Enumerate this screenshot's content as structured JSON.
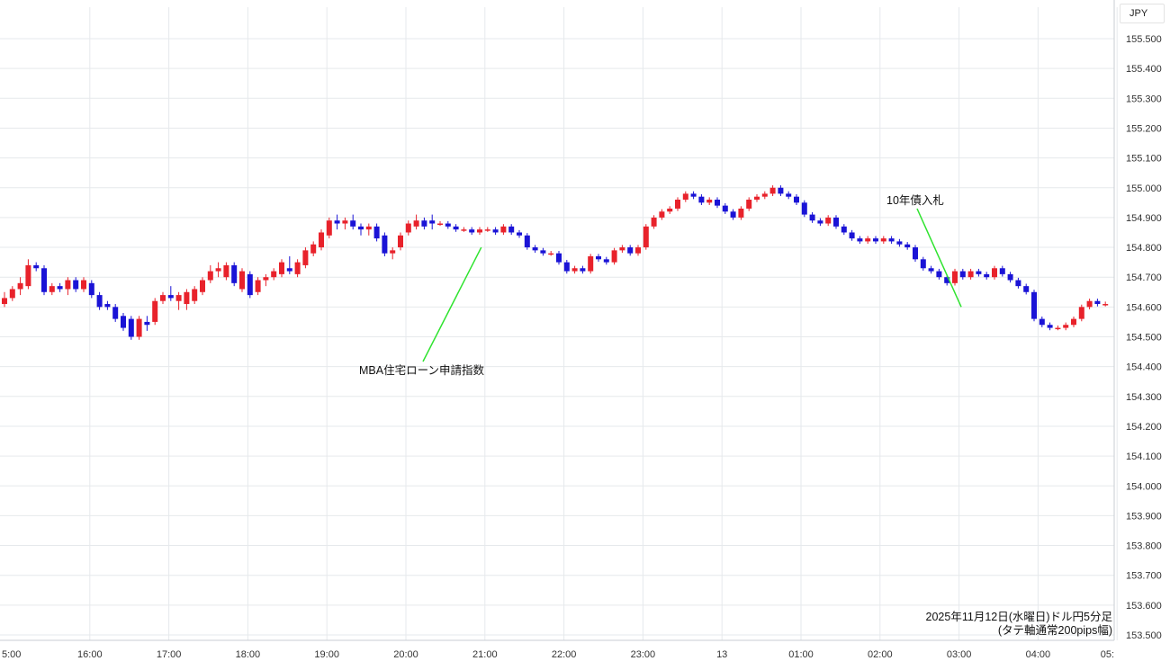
{
  "chart_data": {
    "type": "candlestick",
    "unit": "JPY",
    "caption_line1": "2025年11月12日(水曜日)ドル円5分足",
    "caption_line2": "(タテ軸通常200pips幅)",
    "ylim": [
      153.5,
      155.5
    ],
    "x_ticks": [
      "5:00",
      "16:00",
      "17:00",
      "18:00",
      "19:00",
      "20:00",
      "21:00",
      "22:00",
      "23:00",
      "13",
      "01:00",
      "02:00",
      "03:00",
      "04:00",
      "05:"
    ],
    "y_ticks": [
      "155.500",
      "155.400",
      "155.300",
      "155.200",
      "155.100",
      "155.000",
      "154.900",
      "154.800",
      "154.700",
      "154.600",
      "154.500",
      "154.400",
      "154.300",
      "154.200",
      "154.100",
      "154.000",
      "153.900",
      "153.800",
      "153.700",
      "153.600",
      "153.500"
    ],
    "annotations": [
      {
        "text": "MBA住宅ローン申請指数",
        "time_index": 60.2,
        "price": 154.8
      },
      {
        "text": "10年債入札",
        "time_index": 120.8,
        "price": 154.6
      }
    ],
    "colors": {
      "up": "#e8222b",
      "down": "#1a13d6",
      "annotation": "#2fe32f",
      "grid": "#e6e9ec"
    },
    "candles": [
      {
        "o": 154.61,
        "h": 154.65,
        "l": 154.6,
        "c": 154.63
      },
      {
        "o": 154.63,
        "h": 154.67,
        "l": 154.62,
        "c": 154.66
      },
      {
        "o": 154.66,
        "h": 154.7,
        "l": 154.64,
        "c": 154.68
      },
      {
        "o": 154.67,
        "h": 154.76,
        "l": 154.66,
        "c": 154.74
      },
      {
        "o": 154.74,
        "h": 154.75,
        "l": 154.72,
        "c": 154.73
      },
      {
        "o": 154.73,
        "h": 154.74,
        "l": 154.64,
        "c": 154.65
      },
      {
        "o": 154.65,
        "h": 154.68,
        "l": 154.64,
        "c": 154.67
      },
      {
        "o": 154.67,
        "h": 154.68,
        "l": 154.65,
        "c": 154.66
      },
      {
        "o": 154.66,
        "h": 154.7,
        "l": 154.64,
        "c": 154.69
      },
      {
        "o": 154.69,
        "h": 154.7,
        "l": 154.65,
        "c": 154.66
      },
      {
        "o": 154.66,
        "h": 154.7,
        "l": 154.65,
        "c": 154.69
      },
      {
        "o": 154.68,
        "h": 154.69,
        "l": 154.63,
        "c": 154.64
      },
      {
        "o": 154.64,
        "h": 154.65,
        "l": 154.59,
        "c": 154.6
      },
      {
        "o": 154.61,
        "h": 154.62,
        "l": 154.59,
        "c": 154.6
      },
      {
        "o": 154.6,
        "h": 154.61,
        "l": 154.55,
        "c": 154.56
      },
      {
        "o": 154.57,
        "h": 154.58,
        "l": 154.52,
        "c": 154.53
      },
      {
        "o": 154.56,
        "h": 154.57,
        "l": 154.49,
        "c": 154.5
      },
      {
        "o": 154.5,
        "h": 154.57,
        "l": 154.49,
        "c": 154.56
      },
      {
        "o": 154.55,
        "h": 154.57,
        "l": 154.52,
        "c": 154.54
      },
      {
        "o": 154.55,
        "h": 154.63,
        "l": 154.54,
        "c": 154.62
      },
      {
        "o": 154.62,
        "h": 154.65,
        "l": 154.61,
        "c": 154.64
      },
      {
        "o": 154.64,
        "h": 154.67,
        "l": 154.62,
        "c": 154.63
      },
      {
        "o": 154.62,
        "h": 154.65,
        "l": 154.59,
        "c": 154.64
      },
      {
        "o": 154.61,
        "h": 154.66,
        "l": 154.59,
        "c": 154.65
      },
      {
        "o": 154.62,
        "h": 154.67,
        "l": 154.61,
        "c": 154.66
      },
      {
        "o": 154.65,
        "h": 154.7,
        "l": 154.64,
        "c": 154.69
      },
      {
        "o": 154.69,
        "h": 154.74,
        "l": 154.68,
        "c": 154.72
      },
      {
        "o": 154.72,
        "h": 154.75,
        "l": 154.7,
        "c": 154.73
      },
      {
        "o": 154.7,
        "h": 154.75,
        "l": 154.69,
        "c": 154.74
      },
      {
        "o": 154.74,
        "h": 154.75,
        "l": 154.67,
        "c": 154.68
      },
      {
        "o": 154.66,
        "h": 154.73,
        "l": 154.65,
        "c": 154.72
      },
      {
        "o": 154.71,
        "h": 154.72,
        "l": 154.63,
        "c": 154.64
      },
      {
        "o": 154.65,
        "h": 154.7,
        "l": 154.64,
        "c": 154.69
      },
      {
        "o": 154.69,
        "h": 154.71,
        "l": 154.67,
        "c": 154.7
      },
      {
        "o": 154.7,
        "h": 154.73,
        "l": 154.69,
        "c": 154.72
      },
      {
        "o": 154.71,
        "h": 154.76,
        "l": 154.7,
        "c": 154.75
      },
      {
        "o": 154.73,
        "h": 154.77,
        "l": 154.71,
        "c": 154.72
      },
      {
        "o": 154.71,
        "h": 154.76,
        "l": 154.7,
        "c": 154.75
      },
      {
        "o": 154.74,
        "h": 154.8,
        "l": 154.73,
        "c": 154.79
      },
      {
        "o": 154.78,
        "h": 154.82,
        "l": 154.77,
        "c": 154.81
      },
      {
        "o": 154.8,
        "h": 154.86,
        "l": 154.79,
        "c": 154.85
      },
      {
        "o": 154.84,
        "h": 154.9,
        "l": 154.83,
        "c": 154.89
      },
      {
        "o": 154.89,
        "h": 154.91,
        "l": 154.86,
        "c": 154.88
      },
      {
        "o": 154.88,
        "h": 154.9,
        "l": 154.86,
        "c": 154.89
      },
      {
        "o": 154.89,
        "h": 154.91,
        "l": 154.86,
        "c": 154.87
      },
      {
        "o": 154.87,
        "h": 154.88,
        "l": 154.84,
        "c": 154.86
      },
      {
        "o": 154.86,
        "h": 154.88,
        "l": 154.84,
        "c": 154.87
      },
      {
        "o": 154.87,
        "h": 154.88,
        "l": 154.82,
        "c": 154.83
      },
      {
        "o": 154.84,
        "h": 154.85,
        "l": 154.77,
        "c": 154.78
      },
      {
        "o": 154.78,
        "h": 154.8,
        "l": 154.76,
        "c": 154.79
      },
      {
        "o": 154.8,
        "h": 154.85,
        "l": 154.79,
        "c": 154.84
      },
      {
        "o": 154.85,
        "h": 154.89,
        "l": 154.84,
        "c": 154.88
      },
      {
        "o": 154.87,
        "h": 154.91,
        "l": 154.86,
        "c": 154.89
      },
      {
        "o": 154.89,
        "h": 154.9,
        "l": 154.86,
        "c": 154.87
      },
      {
        "o": 154.89,
        "h": 154.91,
        "l": 154.86,
        "c": 154.88
      }
    ]
  }
}
